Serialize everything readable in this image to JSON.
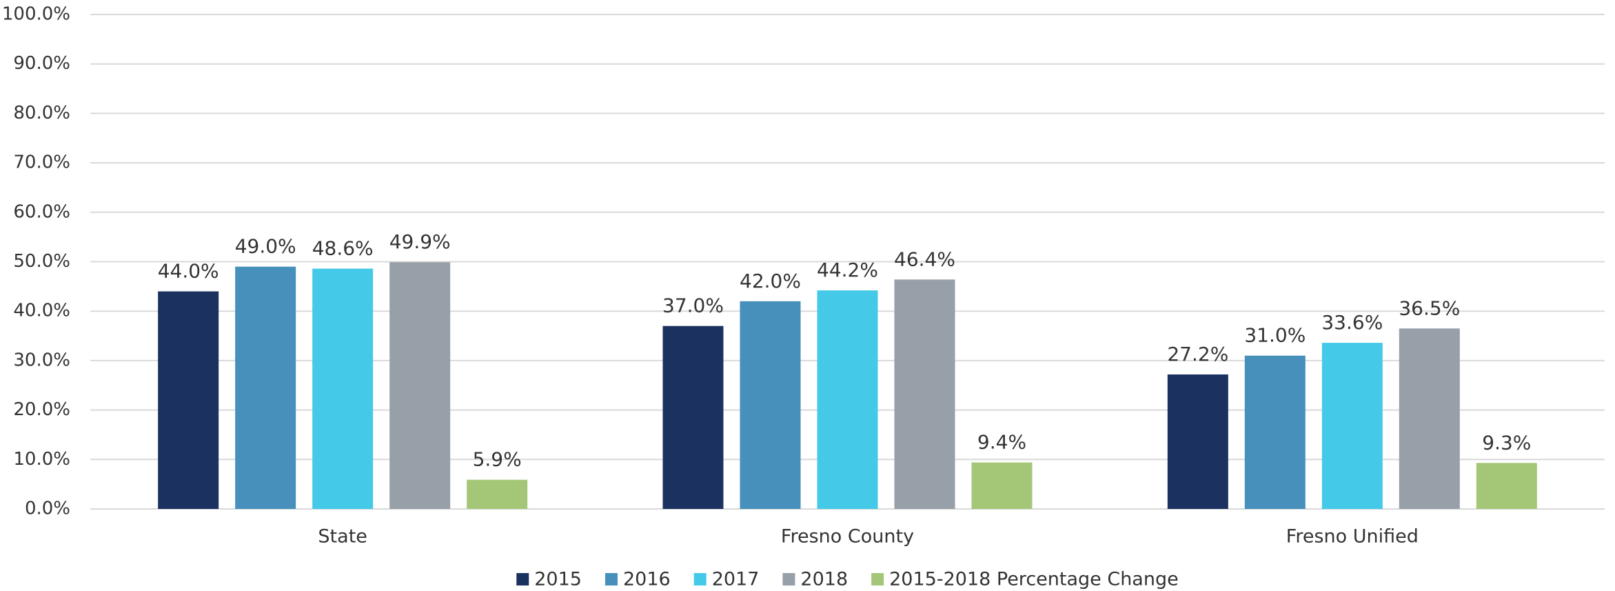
{
  "chart_data": {
    "type": "bar",
    "categories": [
      "State",
      "Fresno County",
      "Fresno Unified"
    ],
    "series": [
      {
        "name": "2015",
        "color": "#1b3260",
        "values": [
          44.0,
          37.0,
          27.2
        ],
        "value_labels": [
          "44.0%",
          "37.0%",
          "27.2%"
        ]
      },
      {
        "name": "2016",
        "color": "#4690bb",
        "values": [
          49.0,
          42.0,
          31.0
        ],
        "value_labels": [
          "49.0%",
          "42.0%",
          "31.0%"
        ]
      },
      {
        "name": "2017",
        "color": "#44c9e8",
        "values": [
          48.6,
          44.2,
          33.6
        ],
        "value_labels": [
          "48.6%",
          "44.2%",
          "33.6%"
        ]
      },
      {
        "name": "2018",
        "color": "#979fa8",
        "values": [
          49.9,
          46.4,
          36.5
        ],
        "value_labels": [
          "49.9%",
          "46.4%",
          "36.5%"
        ]
      },
      {
        "name": "2015-2018 Percentage Change",
        "color": "#a3c777",
        "values": [
          5.9,
          9.4,
          9.3
        ],
        "value_labels": [
          "5.9%",
          "9.4%",
          "9.3%"
        ]
      }
    ],
    "ylim": [
      0,
      100
    ],
    "yticks": [
      {
        "value": 0,
        "label": "0.0%"
      },
      {
        "value": 10,
        "label": "10.0%"
      },
      {
        "value": 20,
        "label": "20.0%"
      },
      {
        "value": 30,
        "label": "30.0%"
      },
      {
        "value": 40,
        "label": "40.0%"
      },
      {
        "value": 50,
        "label": "50.0%"
      },
      {
        "value": 60,
        "label": "60.0%"
      },
      {
        "value": 70,
        "label": "70.0%"
      },
      {
        "value": 80,
        "label": "80.0%"
      },
      {
        "value": 90,
        "label": "90.0%"
      },
      {
        "value": 100,
        "label": "100.0%"
      }
    ],
    "grid": true,
    "legend": "bottom"
  }
}
